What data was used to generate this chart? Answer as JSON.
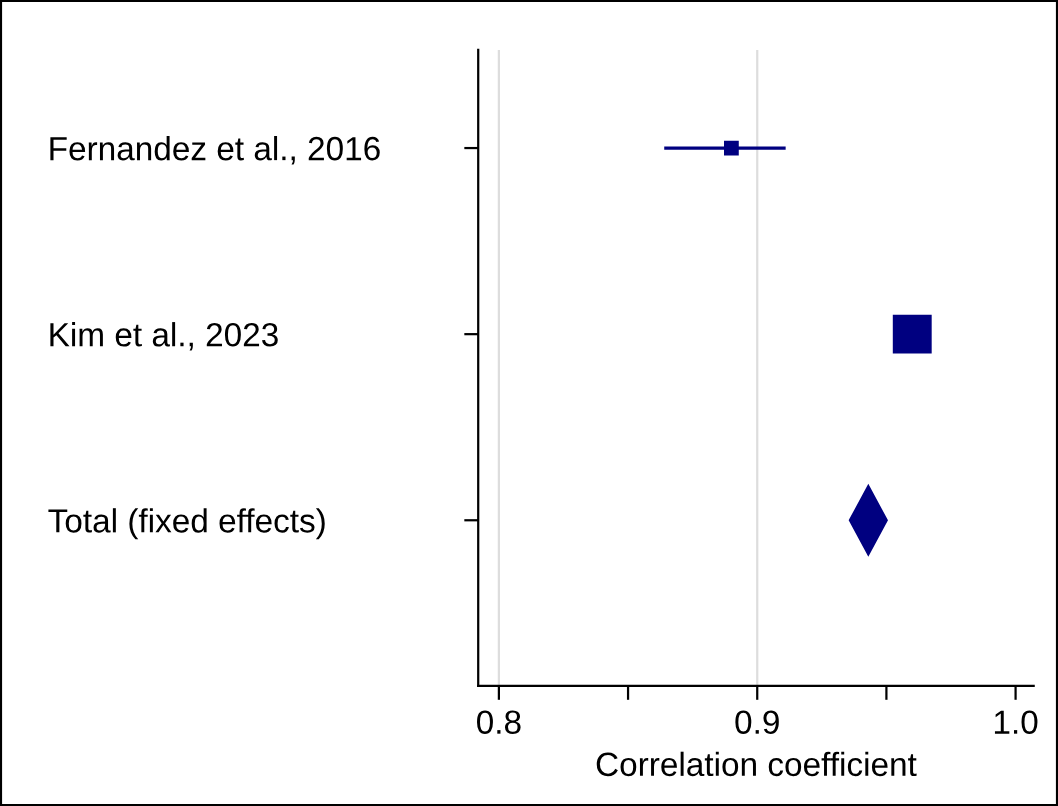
{
  "chart_data": {
    "type": "scatter",
    "orientation": "horizontal",
    "xlabel": "Correlation coefficient",
    "categories": [
      "Fernandez et al., 2016",
      "Kim et al., 2023",
      "Total (fixed effects)"
    ],
    "series": [
      {
        "color": "#000080",
        "marker": "square",
        "values": [
          0.89,
          0.96,
          null
        ],
        "sizes": [
          0.11,
          1,
          null
        ],
        "errors": [
          [
            0.864,
            0.911
          ],
          null,
          null
        ]
      },
      {
        "color": "#000080",
        "marker": "diamond",
        "values": [
          null,
          null,
          0.943
        ],
        "errors": [
          null,
          null,
          [
            0.936,
            0.95
          ]
        ]
      }
    ],
    "xlim": [
      0.792,
      1.007
    ],
    "xticks": [
      0.8,
      {
        "value": 0.85,
        "label": null
      },
      0.9,
      {
        "value": 0.95,
        "label": null
      },
      {
        "value": 1.0,
        "label": "1.0"
      }
    ],
    "grid": "x"
  }
}
